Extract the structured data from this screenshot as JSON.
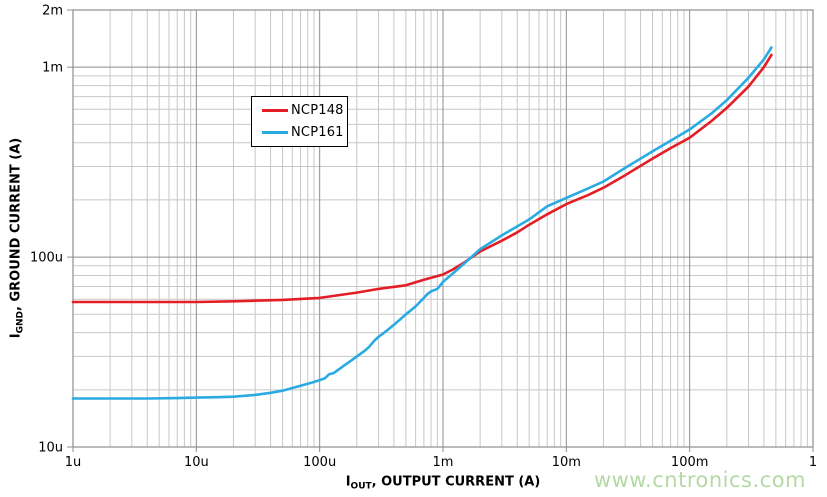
{
  "watermark": "www.cntronics.com",
  "colors": {
    "grid_minor": "#c7c7c7",
    "grid_major": "#8e8e8e",
    "axis_line": "#8e8e8e",
    "tick_label": "#000000",
    "watermark": "#b4d9a4",
    "legend_border": "#000000",
    "background": "#ffffff"
  },
  "axis_titles": {
    "x_prefix": "I",
    "x_sub": "OUT",
    "x_rest": ", OUTPUT CURRENT (A)",
    "y_prefix": "I",
    "y_sub": "GND",
    "y_rest": ", GROUND CURRENT (A)"
  },
  "chart_data": {
    "type": "line",
    "title": "",
    "xlabel": "IOUT, OUTPUT CURRENT (A)",
    "ylabel": "IGND, GROUND CURRENT (A)",
    "x_axis": {
      "scale": "log",
      "min": 1e-06,
      "max": 1,
      "ticks": [
        1e-06,
        1e-05,
        0.0001,
        0.001,
        0.01,
        0.1,
        1
      ],
      "tick_labels": [
        "1u",
        "10u",
        "100u",
        "1m",
        "10m",
        "100m",
        "1"
      ],
      "grid": true
    },
    "y_axis": {
      "scale": "log",
      "min": 1e-05,
      "max": 0.002,
      "ticks": [
        1e-05,
        0.0001,
        0.001,
        0.002
      ],
      "tick_labels": [
        "10u",
        "100u",
        "1m",
        "2m"
      ],
      "grid": true
    },
    "legend_position": "inside-top-left",
    "series": [
      {
        "name": "NCP148",
        "color": "#e41e26",
        "points": [
          [
            1e-06,
            5.8e-05
          ],
          [
            2e-06,
            5.8e-05
          ],
          [
            5e-06,
            5.8e-05
          ],
          [
            1e-05,
            5.8e-05
          ],
          [
            2e-05,
            5.85e-05
          ],
          [
            5e-05,
            5.95e-05
          ],
          [
            0.0001,
            6.1e-05
          ],
          [
            0.0002,
            6.5e-05
          ],
          [
            0.0003,
            6.8e-05
          ],
          [
            0.0005,
            7.1e-05
          ],
          [
            0.0007,
            7.6e-05
          ],
          [
            0.001,
            8.1e-05
          ],
          [
            0.0012,
            8.6e-05
          ],
          [
            0.0015,
            9.4e-05
          ],
          [
            0.002,
            0.000107
          ],
          [
            0.003,
            0.000122
          ],
          [
            0.004,
            0.000135
          ],
          [
            0.005,
            0.000148
          ],
          [
            0.007,
            0.000168
          ],
          [
            0.01,
            0.00019
          ],
          [
            0.015,
            0.000212
          ],
          [
            0.02,
            0.000232
          ],
          [
            0.03,
            0.00027
          ],
          [
            0.05,
            0.00033
          ],
          [
            0.07,
            0.000375
          ],
          [
            0.1,
            0.000425
          ],
          [
            0.15,
            0.00052
          ],
          [
            0.2,
            0.00061
          ],
          [
            0.3,
            0.00079
          ],
          [
            0.4,
            0.001
          ],
          [
            0.46,
            0.00116
          ]
        ]
      },
      {
        "name": "NCP161",
        "color": "#29abe2",
        "points": [
          [
            1e-06,
            1.8e-05
          ],
          [
            2e-06,
            1.8e-05
          ],
          [
            4e-06,
            1.8e-05
          ],
          [
            7e-06,
            1.81e-05
          ],
          [
            1e-05,
            1.82e-05
          ],
          [
            1.5e-05,
            1.83e-05
          ],
          [
            2e-05,
            1.84e-05
          ],
          [
            3e-05,
            1.88e-05
          ],
          [
            4e-05,
            1.93e-05
          ],
          [
            5e-05,
            1.98e-05
          ],
          [
            7e-05,
            2.1e-05
          ],
          [
            9e-05,
            2.2e-05
          ],
          [
            0.0001,
            2.25e-05
          ],
          [
            0.00011,
            2.3e-05
          ],
          [
            0.00012,
            2.42e-05
          ],
          [
            0.00013,
            2.45e-05
          ],
          [
            0.000145,
            2.58e-05
          ],
          [
            0.00016,
            2.7e-05
          ],
          [
            0.00018,
            2.85e-05
          ],
          [
            0.0002,
            3e-05
          ],
          [
            0.00023,
            3.2e-05
          ],
          [
            0.00025,
            3.35e-05
          ],
          [
            0.00028,
            3.65e-05
          ],
          [
            0.0003,
            3.8e-05
          ],
          [
            0.00035,
            4.1e-05
          ],
          [
            0.0004,
            4.4e-05
          ],
          [
            0.00045,
            4.7e-05
          ],
          [
            0.0005,
            5e-05
          ],
          [
            0.00055,
            5.25e-05
          ],
          [
            0.0006,
            5.5e-05
          ],
          [
            0.00065,
            5.8e-05
          ],
          [
            0.0007,
            6.1e-05
          ],
          [
            0.00075,
            6.4e-05
          ],
          [
            0.0008,
            6.6e-05
          ],
          [
            0.00085,
            6.7e-05
          ],
          [
            0.0009,
            6.8e-05
          ],
          [
            0.001,
            7.4e-05
          ],
          [
            0.0012,
            8.2e-05
          ],
          [
            0.0015,
            9.3e-05
          ],
          [
            0.002,
            0.00011
          ],
          [
            0.003,
            0.00013
          ],
          [
            0.004,
            0.000145
          ],
          [
            0.005,
            0.000158
          ],
          [
            0.007,
            0.000185
          ],
          [
            0.01,
            0.000205
          ],
          [
            0.015,
            0.00023
          ],
          [
            0.02,
            0.00025
          ],
          [
            0.03,
            0.000295
          ],
          [
            0.05,
            0.00036
          ],
          [
            0.07,
            0.00041
          ],
          [
            0.1,
            0.00047
          ],
          [
            0.15,
            0.00057
          ],
          [
            0.2,
            0.00067
          ],
          [
            0.3,
            0.00088
          ],
          [
            0.4,
            0.0011
          ],
          [
            0.46,
            0.00127
          ]
        ]
      }
    ]
  }
}
